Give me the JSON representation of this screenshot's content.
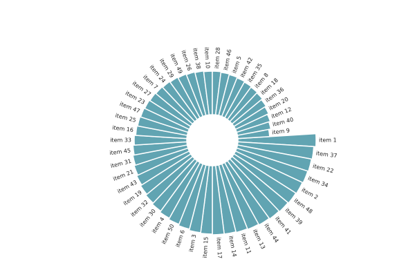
{
  "chart_data": {
    "type": "radial-bar",
    "color": "#61a4b2",
    "categories": [
      "item 1",
      "item 37",
      "item 22",
      "item 34",
      "item 2",
      "item 48",
      "item 39",
      "item 41",
      "item 44",
      "item 13",
      "item 11",
      "item 14",
      "item 17",
      "item 15",
      "item 3",
      "item 6",
      "item 50",
      "item 4",
      "item 30",
      "item 32",
      "item 19",
      "item 43",
      "item 21",
      "item 31",
      "item 45",
      "item 33",
      "item 16",
      "item 25",
      "item 47",
      "item 23",
      "item 27",
      "item 7",
      "item 24",
      "item 29",
      "item 49",
      "item 26",
      "item 38",
      "item 10",
      "item 28",
      "item 46",
      "item 5",
      "item 42",
      "item 35",
      "item 8",
      "item 18",
      "item 36",
      "item 20",
      "item 12",
      "item 40",
      "item 9"
    ],
    "values": [
      113,
      110,
      109,
      108,
      107,
      106,
      105,
      104,
      103,
      102,
      101,
      100,
      100,
      99,
      98,
      96,
      94,
      92,
      90,
      88,
      86,
      84,
      82,
      80,
      78,
      76,
      74,
      73,
      72,
      71,
      70,
      69,
      68,
      67,
      66,
      65,
      64,
      63,
      63,
      62,
      61,
      60,
      59,
      58,
      57,
      55,
      53,
      51,
      49,
      46
    ]
  }
}
